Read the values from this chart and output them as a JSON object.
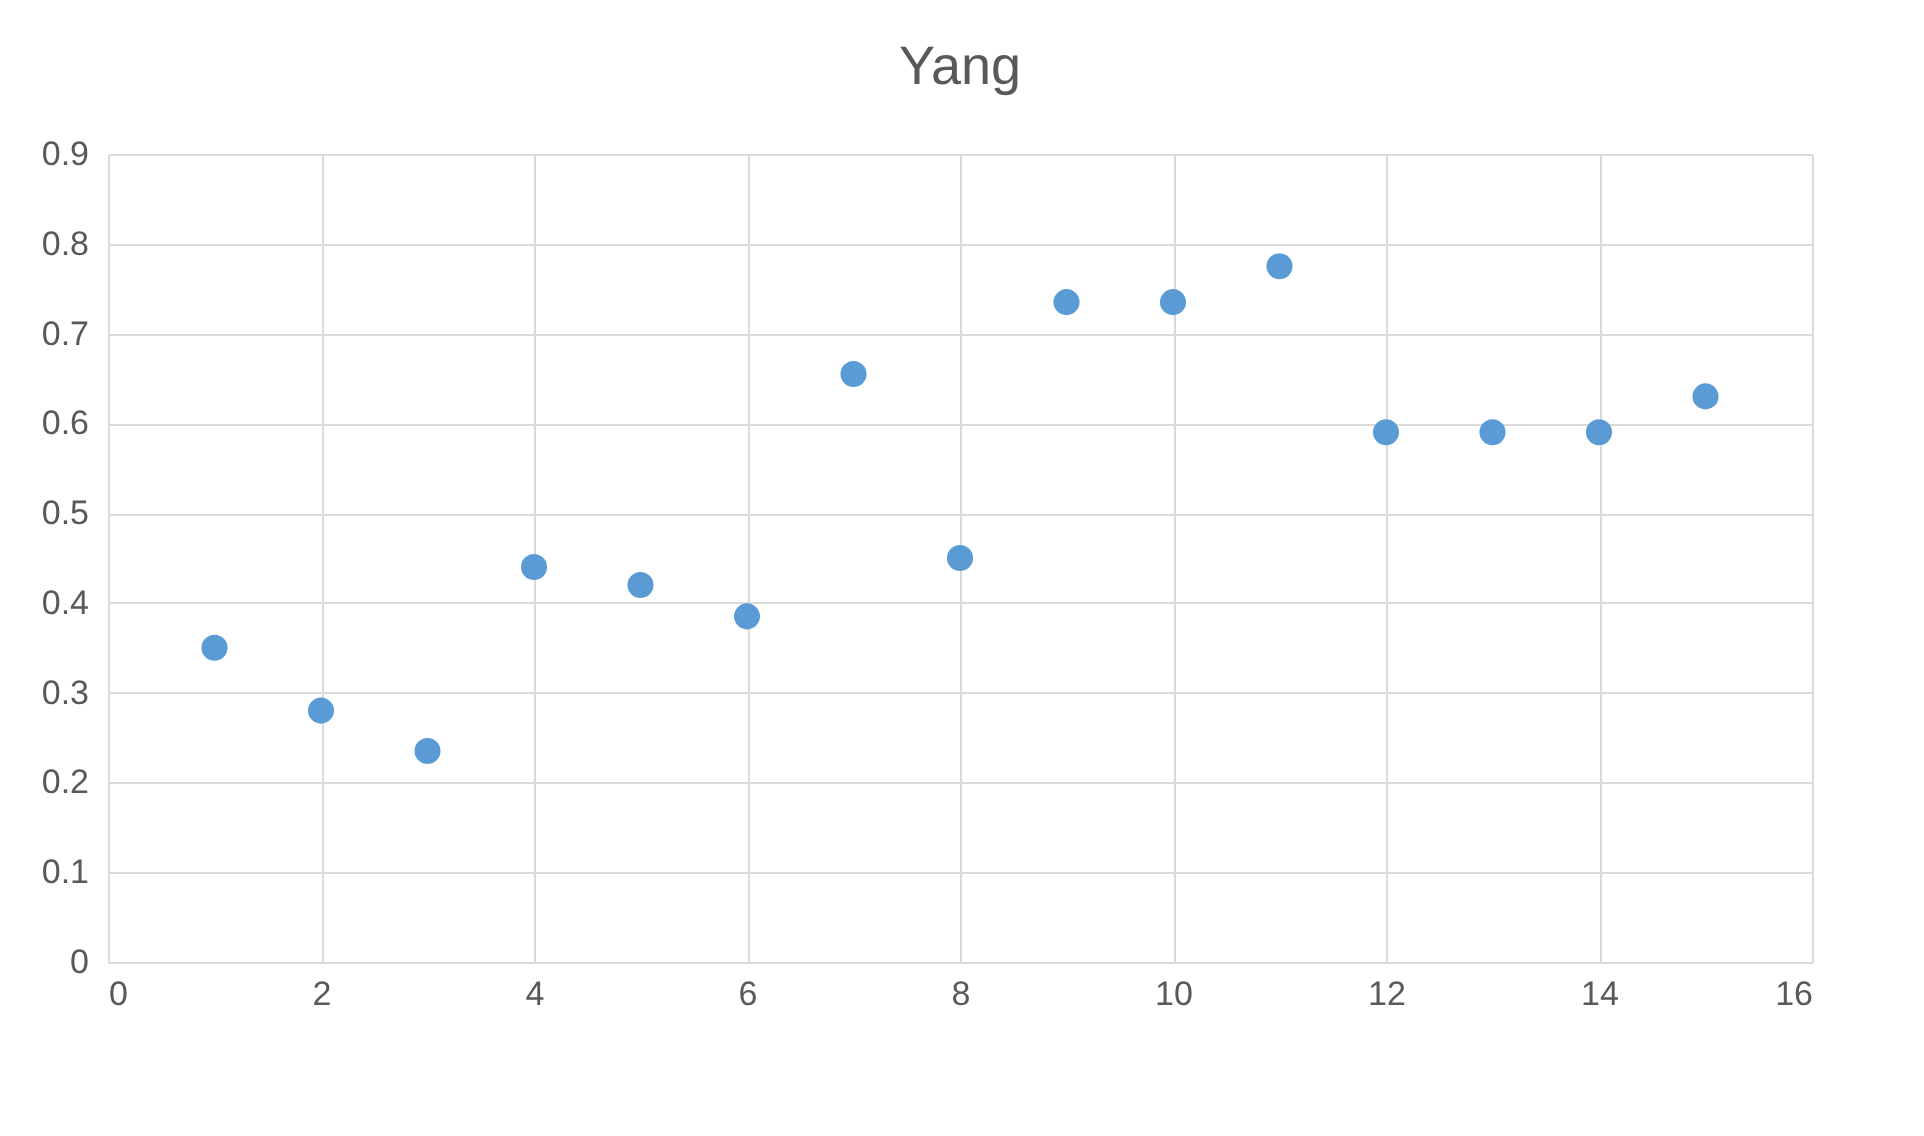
{
  "chart_data": {
    "type": "scatter",
    "title": "Yang",
    "x": [
      1,
      2,
      3,
      4,
      5,
      6,
      7,
      8,
      9,
      10,
      11,
      12,
      13,
      14,
      15
    ],
    "series": [
      {
        "color": "#5b9bd5",
        "values": [
          0.35,
          0.28,
          0.235,
          0.44,
          0.42,
          0.385,
          0.655,
          0.45,
          0.735,
          0.735,
          0.775,
          0.59,
          0.59,
          0.59,
          0.63
        ]
      }
    ],
    "xlim": [
      0,
      16
    ],
    "xticks": [
      0,
      2,
      4,
      6,
      8,
      10,
      12,
      14,
      16
    ],
    "ylim": [
      0,
      0.9
    ],
    "yticks": [
      {
        "value": 0,
        "label": "0"
      },
      0.1,
      0.2,
      0.3,
      0.4,
      0.5,
      0.6,
      0.7,
      0.8,
      0.9
    ],
    "grid": true,
    "marker": "circle",
    "legend": false
  }
}
